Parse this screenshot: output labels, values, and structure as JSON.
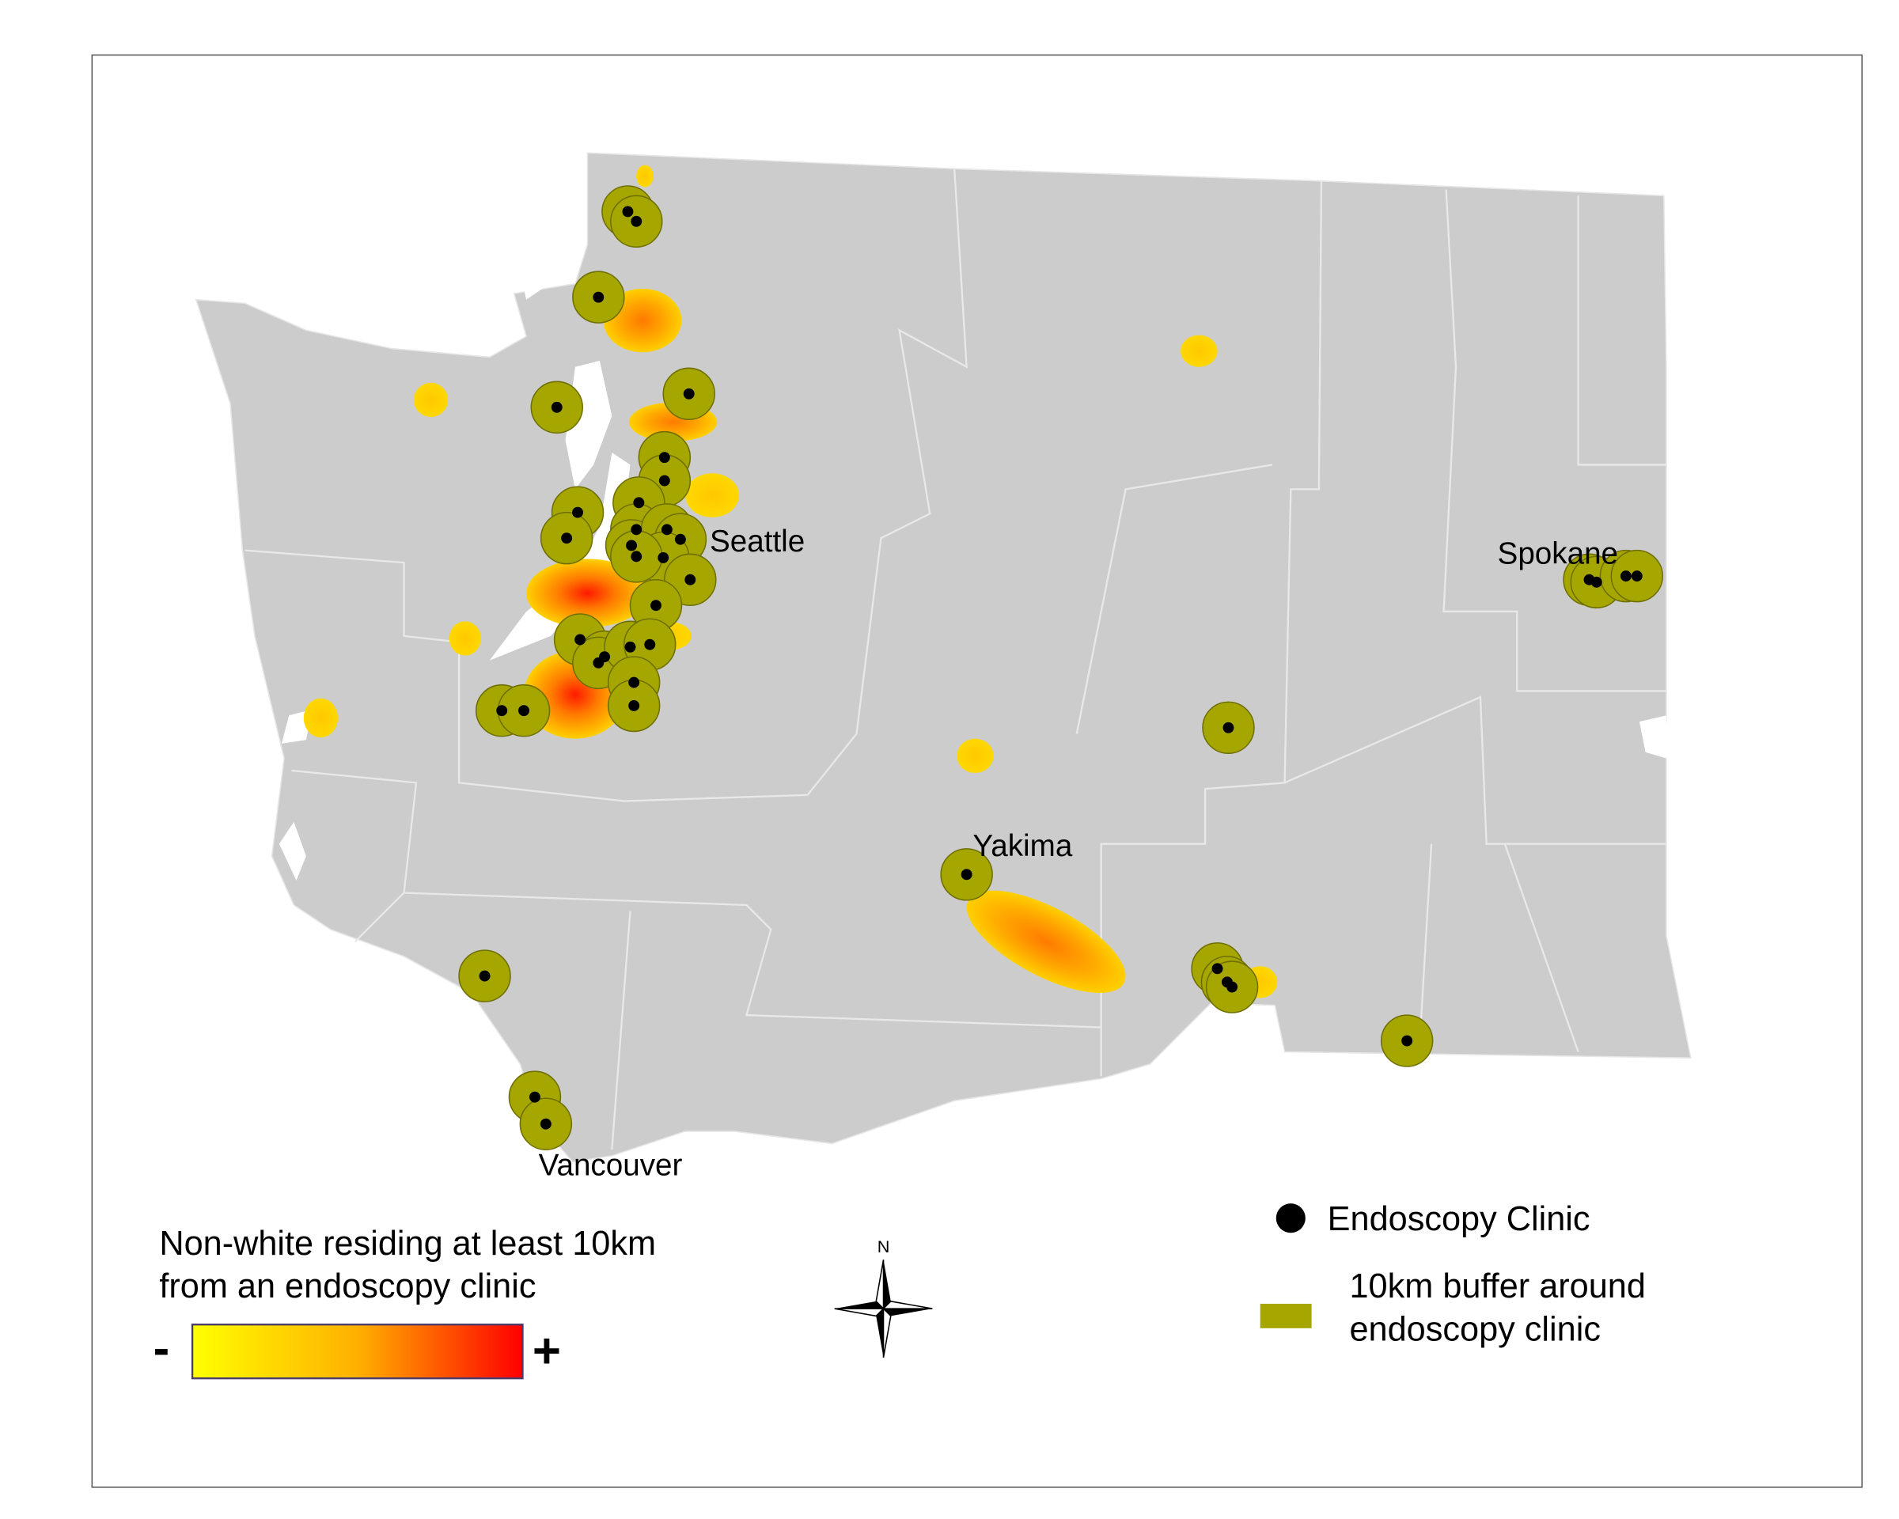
{
  "cities": [
    "Seattle",
    "Yakima",
    "Spokane",
    "Vancouver"
  ],
  "legend": {
    "gradient_title": [
      "Non-white residing at least 10km",
      "from an endoscopy clinic"
    ],
    "gradient_min": "-",
    "gradient_max": "+",
    "clinic": "Endoscopy Clinic",
    "buffer": [
      "10km buffer around",
      "endoscopy clinic"
    ]
  },
  "compass": "N"
}
